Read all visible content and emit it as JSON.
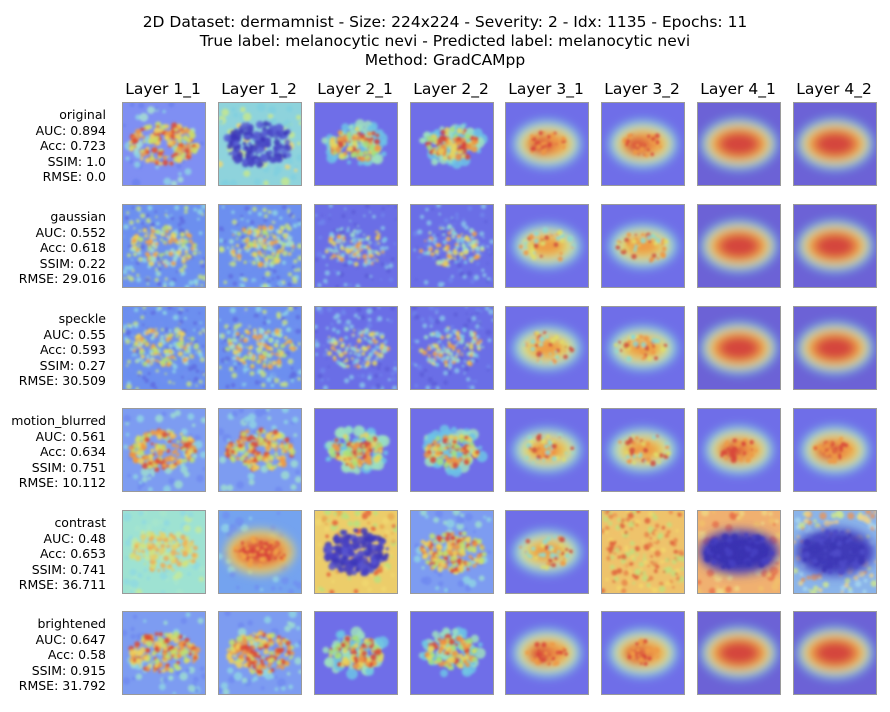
{
  "title": {
    "line1": "2D Dataset: dermamnist - Size: 224x224 - Severity: 2 - Idx: 1135 - Epochs: 11",
    "line2": "True label: melanocytic nevi - Predicted label: melanocytic nevi",
    "line3": "Method: GradCAMpp"
  },
  "layers": [
    "Layer 1_1",
    "Layer 1_2",
    "Layer 2_1",
    "Layer 2_2",
    "Layer 3_1",
    "Layer 3_2",
    "Layer 4_1",
    "Layer 4_2"
  ],
  "rows": [
    {
      "name": "original",
      "auc": "AUC: 0.894",
      "acc": "Acc: 0.723",
      "ssim": "SSIM: 1.0",
      "rmse": "RMSE: 0.0",
      "maps": [
        "hot-speckle",
        "inverted-blob",
        "patchy",
        "patchy",
        "blob",
        "blob",
        "big-blob",
        "big-blob"
      ]
    },
    {
      "name": "gaussian",
      "auc": "AUC: 0.552",
      "acc": "Acc: 0.618",
      "ssim": "SSIM: 0.22",
      "rmse": "RMSE: 29.016",
      "maps": [
        "noisy",
        "noisy",
        "noisy-low",
        "noisy-low",
        "blob-soft",
        "blob-soft",
        "big-blob",
        "big-blob"
      ]
    },
    {
      "name": "speckle",
      "auc": "AUC: 0.55",
      "acc": "Acc: 0.593",
      "ssim": "SSIM: 0.27",
      "rmse": "RMSE: 30.509",
      "maps": [
        "noisy",
        "noisy",
        "noisy-low",
        "noisy-low",
        "blob-soft",
        "blob-soft",
        "big-blob",
        "big-blob"
      ]
    },
    {
      "name": "motion_blurred",
      "auc": "AUC: 0.561",
      "acc": "Acc: 0.634",
      "ssim": "SSIM: 0.751",
      "rmse": "RMSE: 10.112",
      "maps": [
        "warm-speckle",
        "warm-speckle",
        "patchy",
        "patchy",
        "blob-soft",
        "blob-soft",
        "blob",
        "blob"
      ]
    },
    {
      "name": "contrast",
      "auc": "AUC: 0.48",
      "acc": "Acc: 0.653",
      "ssim": "SSIM: 0.741",
      "rmse": "RMSE: 36.711",
      "maps": [
        "pale",
        "hot-oval",
        "inverted-yellow",
        "warm-speckle",
        "blob-soft",
        "yellow-field",
        "inverted-frame",
        "inverted-frame-pale"
      ]
    },
    {
      "name": "brightened",
      "auc": "AUC: 0.647",
      "acc": "Acc: 0.58",
      "ssim": "SSIM: 0.915",
      "rmse": "RMSE: 31.792",
      "maps": [
        "warm-speckle",
        "warm-speckle",
        "patchy",
        "patchy",
        "blob",
        "blob",
        "big-blob",
        "big-blob"
      ]
    }
  ]
}
